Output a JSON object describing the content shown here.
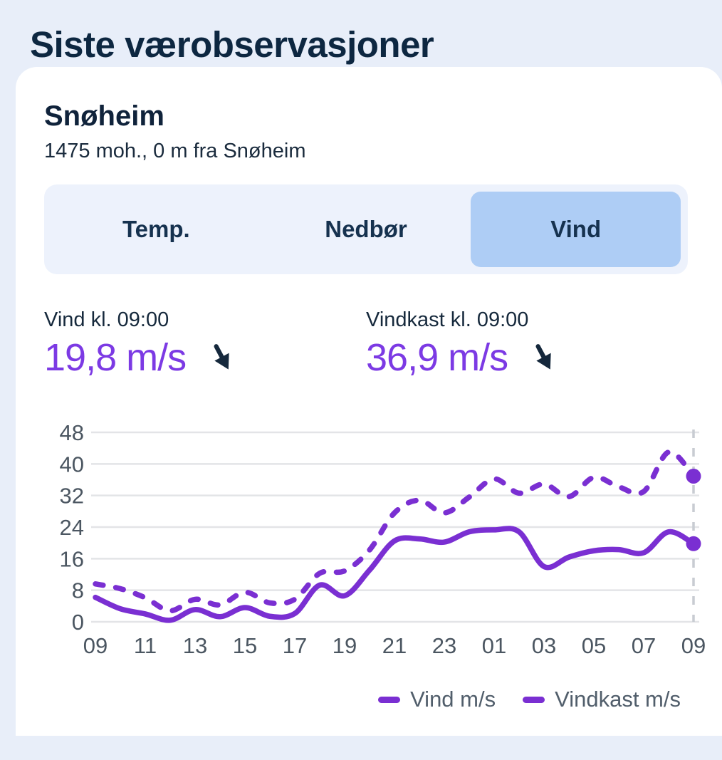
{
  "page": {
    "title": "Siste værobservasjoner"
  },
  "station": {
    "name": "Snøheim",
    "meta": "1475 moh., 0 m fra Snøheim"
  },
  "tabs": [
    {
      "label": "Temp.",
      "selected": false
    },
    {
      "label": "Nedbør",
      "selected": false
    },
    {
      "label": "Vind",
      "selected": true
    }
  ],
  "stats": [
    {
      "label": "Vind kl. 09:00",
      "value": "19,8 m/s",
      "direction_icon": "arrow-down-right"
    },
    {
      "label": "Vindkast kl. 09:00",
      "value": "36,9 m/s",
      "direction_icon": "arrow-down-right"
    }
  ],
  "colors": {
    "page_bg": "#e8eef9",
    "card_bg": "#ffffff",
    "navy_text": "#0d2741",
    "tabbar_bg": "#edf2fc",
    "selected_tab_bg": "#aecdf5",
    "value_purple": "#7c3ae4",
    "line_purple": "#7a2fd2",
    "axis_text": "#4b5661",
    "gridline": "#e3e4e7",
    "now_line": "#c8ccd2",
    "legend_text": "#515e6b",
    "arrow_color": "#15283c"
  },
  "chart_data": {
    "type": "line",
    "title": "",
    "xlabel": "",
    "ylabel": "",
    "x_hours": [
      "09",
      "10",
      "11",
      "12",
      "13",
      "14",
      "15",
      "16",
      "17",
      "18",
      "19",
      "20",
      "21",
      "22",
      "23",
      "00",
      "01",
      "02",
      "03",
      "04",
      "05",
      "06",
      "07",
      "08",
      "09"
    ],
    "x_tick_labels": [
      "09",
      "11",
      "13",
      "15",
      "17",
      "19",
      "21",
      "23",
      "01",
      "03",
      "05",
      "07",
      "09"
    ],
    "yticks": [
      0,
      8,
      16,
      24,
      32,
      40,
      48
    ],
    "ylim": [
      0,
      48
    ],
    "grid": "horizontal",
    "now_marker_at": "09",
    "legend_position": "bottom-right",
    "series": [
      {
        "name": "Vind m/s",
        "style": "solid",
        "end_dot": true,
        "values": [
          6.2,
          3.3,
          2.0,
          0.4,
          3.1,
          1.3,
          3.6,
          1.4,
          2.1,
          9.3,
          6.6,
          13.1,
          20.5,
          21.0,
          20.2,
          22.8,
          23.3,
          22.8,
          14.0,
          16.4,
          18.0,
          18.3,
          17.5,
          22.8,
          19.8
        ]
      },
      {
        "name": "Vindkast m/s",
        "style": "dashed",
        "end_dot": true,
        "values": [
          9.6,
          8.4,
          6.1,
          2.8,
          5.7,
          4.3,
          7.5,
          4.8,
          5.7,
          12.3,
          12.9,
          18.2,
          27.6,
          30.8,
          27.6,
          31.6,
          36.2,
          32.6,
          34.9,
          31.7,
          36.6,
          34.2,
          33.0,
          43.0,
          36.9
        ]
      }
    ]
  }
}
